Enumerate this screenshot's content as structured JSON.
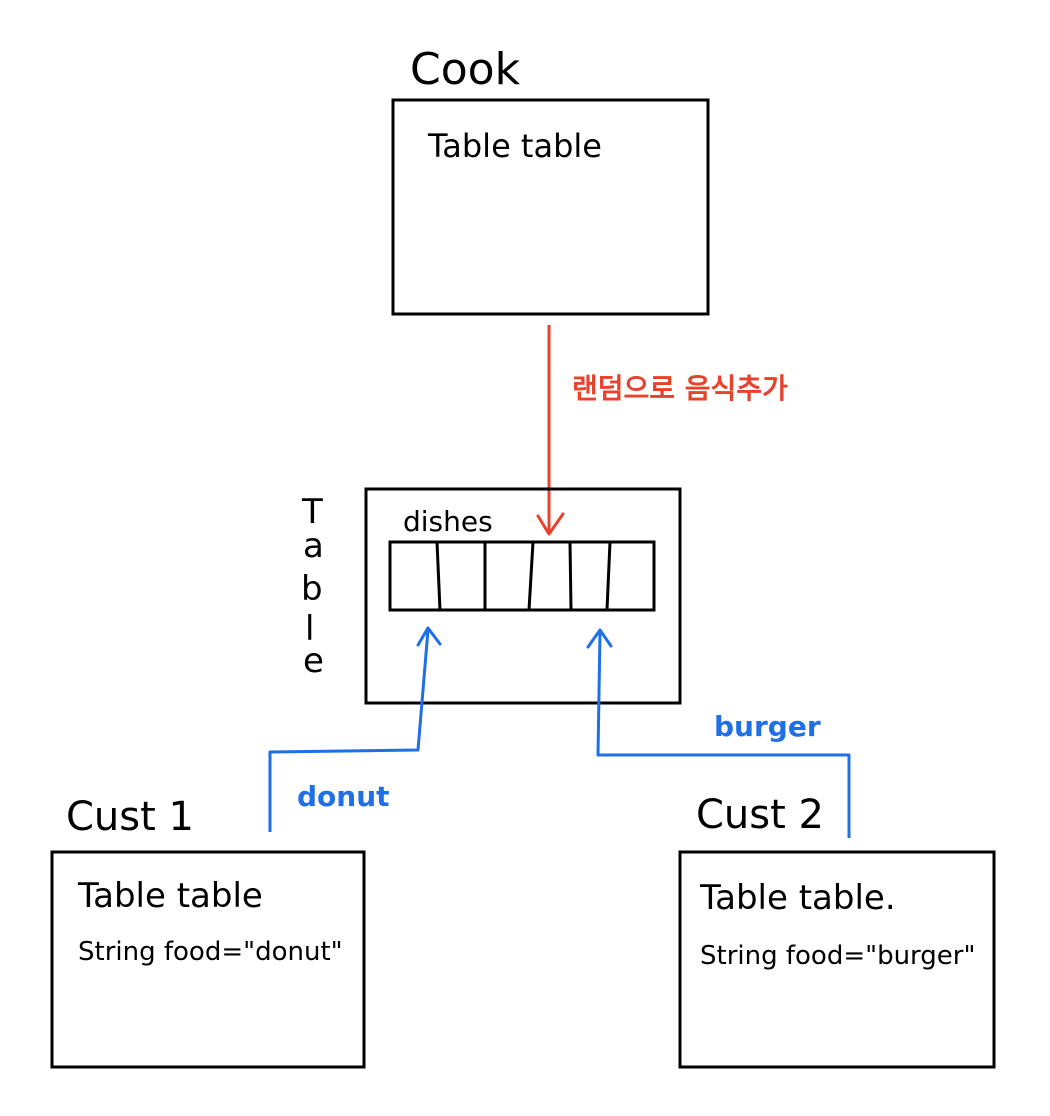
{
  "cook": {
    "title": "Cook",
    "field": "Table table"
  },
  "table": {
    "title_letters": [
      "T",
      "a",
      "b",
      "l",
      "e"
    ],
    "dishes_label": "dishes",
    "slot_count": 6
  },
  "cook_arrow": {
    "label": "랜덤으로 음식추가",
    "color": "#e8412c"
  },
  "customers": [
    {
      "title": "Cust 1",
      "field1": "Table table",
      "field2": "String  food=\"donut\"",
      "arrow_label": "donut"
    },
    {
      "title": "Cust 2",
      "field1": "Table table.",
      "field2": "String food=\"burger\"",
      "arrow_label": "burger"
    }
  ],
  "colors": {
    "ink": "#000000",
    "cook_arrow": "#e8412c",
    "customer_arrow": "#1f6fe6"
  }
}
